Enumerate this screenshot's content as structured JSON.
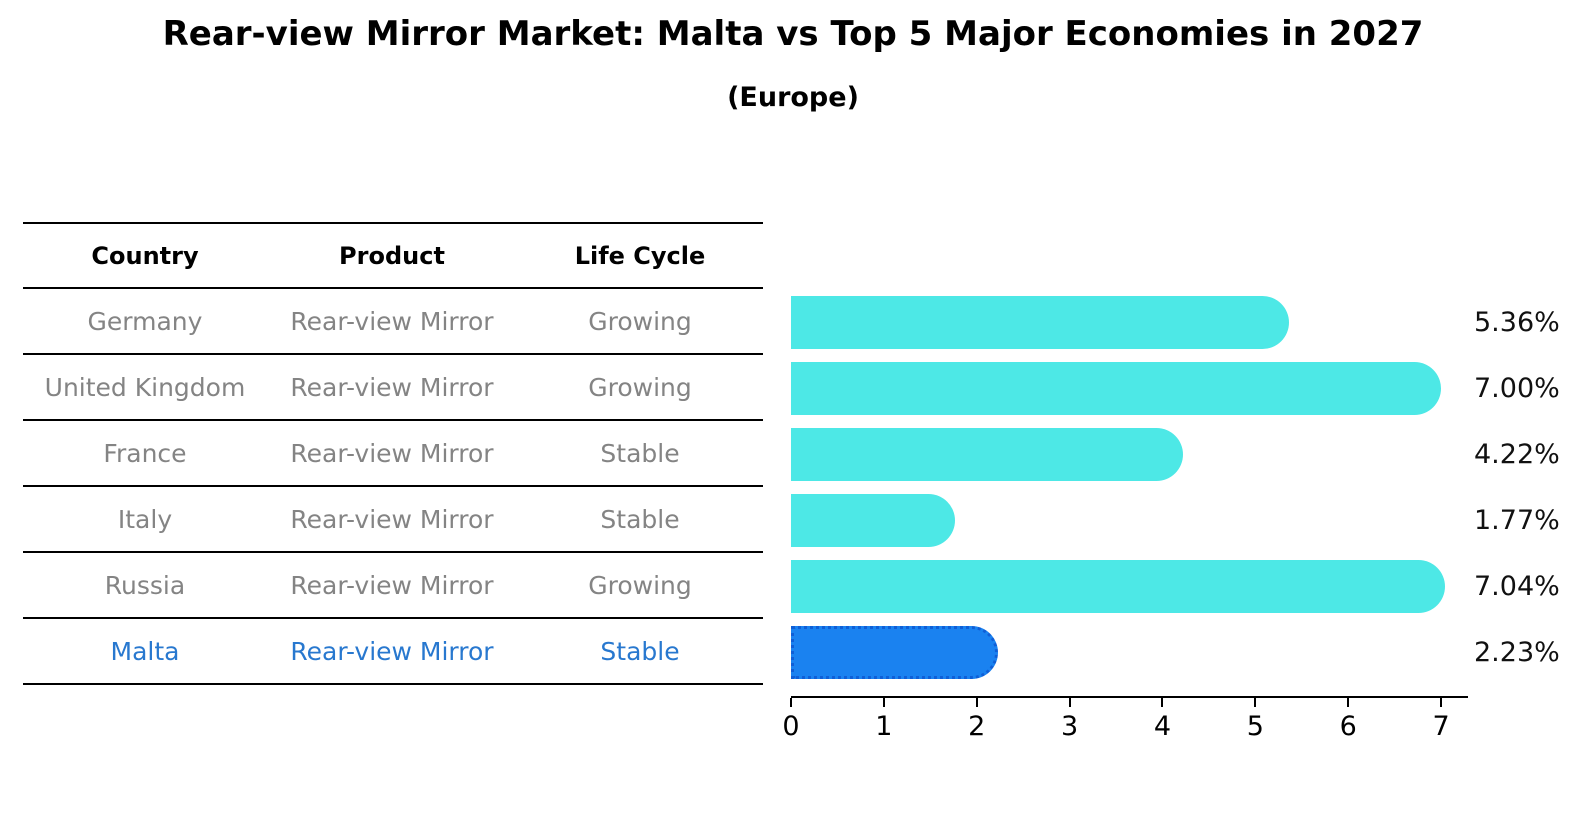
{
  "title": "Rear-view Mirror Market: Malta vs Top 5 Major Economies in 2027",
  "subtitle": "(Europe)",
  "table": {
    "headers": {
      "country": "Country",
      "product": "Product",
      "life_cycle": "Life Cycle"
    },
    "rows": [
      {
        "country": "Germany",
        "product": "Rear-view Mirror",
        "life_cycle": "Growing",
        "value_label": "5.36%"
      },
      {
        "country": "United Kingdom",
        "product": "Rear-view Mirror",
        "life_cycle": "Growing",
        "value_label": "7.00%"
      },
      {
        "country": "France",
        "product": "Rear-view Mirror",
        "life_cycle": "Stable",
        "value_label": "4.22%"
      },
      {
        "country": "Italy",
        "product": "Rear-view Mirror",
        "life_cycle": "Stable",
        "value_label": "1.77%"
      },
      {
        "country": "Russia",
        "product": "Rear-view Mirror",
        "life_cycle": "Growing",
        "value_label": "7.04%"
      },
      {
        "country": "Malta",
        "product": "Rear-view Mirror",
        "life_cycle": "Stable",
        "value_label": "2.23%"
      }
    ]
  },
  "chart_data": {
    "type": "bar",
    "orientation": "horizontal",
    "title": "Rear-view Mirror Market: Malta vs Top 5 Major Economies in 2027 (Europe)",
    "categories": [
      "Germany",
      "United Kingdom",
      "France",
      "Italy",
      "Russia",
      "Malta"
    ],
    "values": [
      5.36,
      7.0,
      4.22,
      1.77,
      7.04,
      2.23
    ],
    "value_labels": [
      "5.36%",
      "7.00%",
      "4.22%",
      "1.77%",
      "7.04%",
      "2.23%"
    ],
    "xticks": [
      0,
      1,
      2,
      3,
      4,
      5,
      6,
      7
    ],
    "xlim": [
      0,
      7.29
    ],
    "xlabel": "",
    "ylabel": "",
    "grid": false,
    "legend": false,
    "highlight_index": 5,
    "bar_color": "#4DE8E6",
    "highlight_bar_color": "#1A82F0",
    "highlight_border_color": "#0F5FD7",
    "highlight_text_color": "#2878CF"
  }
}
